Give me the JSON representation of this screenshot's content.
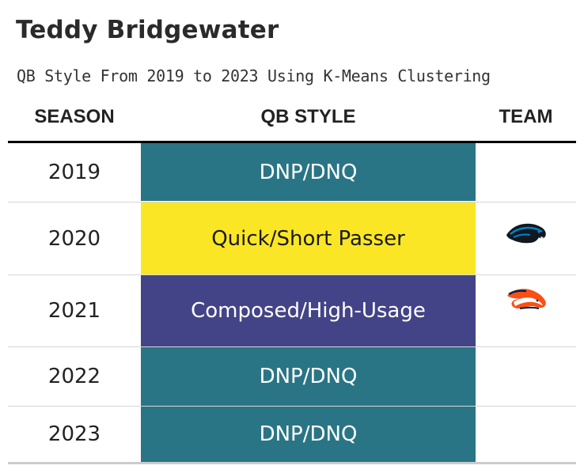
{
  "title": "Teddy Bridgewater",
  "subtitle": "QB Style From 2019 to 2023 Using K-Means Clustering",
  "columns": {
    "season": "SEASON",
    "style": "QB STYLE",
    "team": "TEAM"
  },
  "rows": [
    {
      "season": "2019",
      "style": "DNP/DNQ",
      "color": "#2a7585",
      "text_color": "#ffffff",
      "team_logo": ""
    },
    {
      "season": "2020",
      "style": "Quick/Short Passer",
      "color": "#fbe625",
      "text_color": "#1a1a1a",
      "team_logo": "panthers-logo-icon"
    },
    {
      "season": "2021",
      "style": "Composed/High-Usage",
      "color": "#434487",
      "text_color": "#ffffff",
      "team_logo": "broncos-logo-icon"
    },
    {
      "season": "2022",
      "style": "DNP/DNQ",
      "color": "#2a7585",
      "text_color": "#ffffff",
      "team_logo": ""
    },
    {
      "season": "2023",
      "style": "DNP/DNQ",
      "color": "#2a7585",
      "text_color": "#ffffff",
      "team_logo": ""
    }
  ]
}
